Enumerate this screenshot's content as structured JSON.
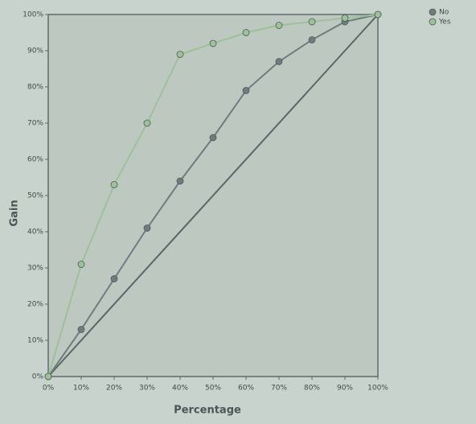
{
  "chart_data": {
    "type": "line",
    "x": [
      0,
      10,
      20,
      30,
      40,
      50,
      60,
      70,
      80,
      90,
      100
    ],
    "series": [
      {
        "name": "No",
        "color": "#6f7c7e",
        "values": [
          0,
          13,
          27,
          41,
          54,
          66,
          79,
          87,
          93,
          98,
          100
        ]
      },
      {
        "name": "Yes",
        "color": "#9cc296",
        "values": [
          0,
          31,
          53,
          70,
          89,
          92,
          95,
          97,
          98,
          99,
          100
        ]
      }
    ],
    "xlabel": "Percentage",
    "ylabel": "Gain",
    "xlim": [
      0,
      100
    ],
    "ylim": [
      0,
      100
    ],
    "xticks": [
      {
        "value": 0,
        "label": "0%"
      },
      {
        "value": 10,
        "label": "10%"
      },
      {
        "value": 20,
        "label": "20%"
      },
      {
        "value": 30,
        "label": "30%"
      },
      {
        "value": 40,
        "label": "40%"
      },
      {
        "value": 50,
        "label": "50%"
      },
      {
        "value": 60,
        "label": "60%"
      },
      {
        "value": 70,
        "label": "70%"
      },
      {
        "value": 80,
        "label": "80%"
      },
      {
        "value": 90,
        "label": "90%"
      },
      {
        "value": 100,
        "label": "100%"
      }
    ],
    "yticks": [
      {
        "value": 0,
        "label": "0%"
      },
      {
        "value": 10,
        "label": "10%"
      },
      {
        "value": 20,
        "label": "20%"
      },
      {
        "value": 30,
        "label": "30%"
      },
      {
        "value": 40,
        "label": "40%"
      },
      {
        "value": 50,
        "label": "50%"
      },
      {
        "value": 60,
        "label": "60%"
      },
      {
        "value": 70,
        "label": "70%"
      },
      {
        "value": 80,
        "label": "80%"
      },
      {
        "value": 90,
        "label": "90%"
      },
      {
        "value": 100,
        "label": "100%"
      }
    ],
    "legend": "top-right"
  }
}
